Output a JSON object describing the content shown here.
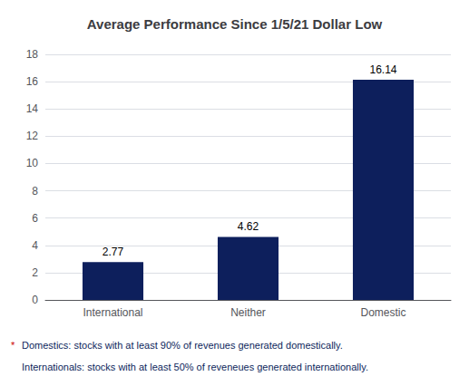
{
  "chart_data": {
    "type": "bar",
    "title": "Average Performance Since 1/5/21 Dollar Low",
    "categories": [
      "International",
      "Neither",
      "Domestic"
    ],
    "values": [
      2.77,
      4.62,
      16.14
    ],
    "color": "#0d1f5c",
    "ylim": [
      0,
      18
    ],
    "yticks": [
      0,
      2,
      4,
      6,
      8,
      10,
      12,
      14,
      16,
      18
    ],
    "grid": true,
    "data_labels": true,
    "annotations": [
      {
        "text": "*",
        "color": "#cc0000"
      },
      {
        "text": "Domestics: stocks with at least 90% of revenues generated domestically.",
        "color": "#0d1f5c"
      },
      {
        "text": "Internationals: stocks with at least 50% of reveneues generated internationally.",
        "color": "#0d1f5c"
      }
    ]
  }
}
